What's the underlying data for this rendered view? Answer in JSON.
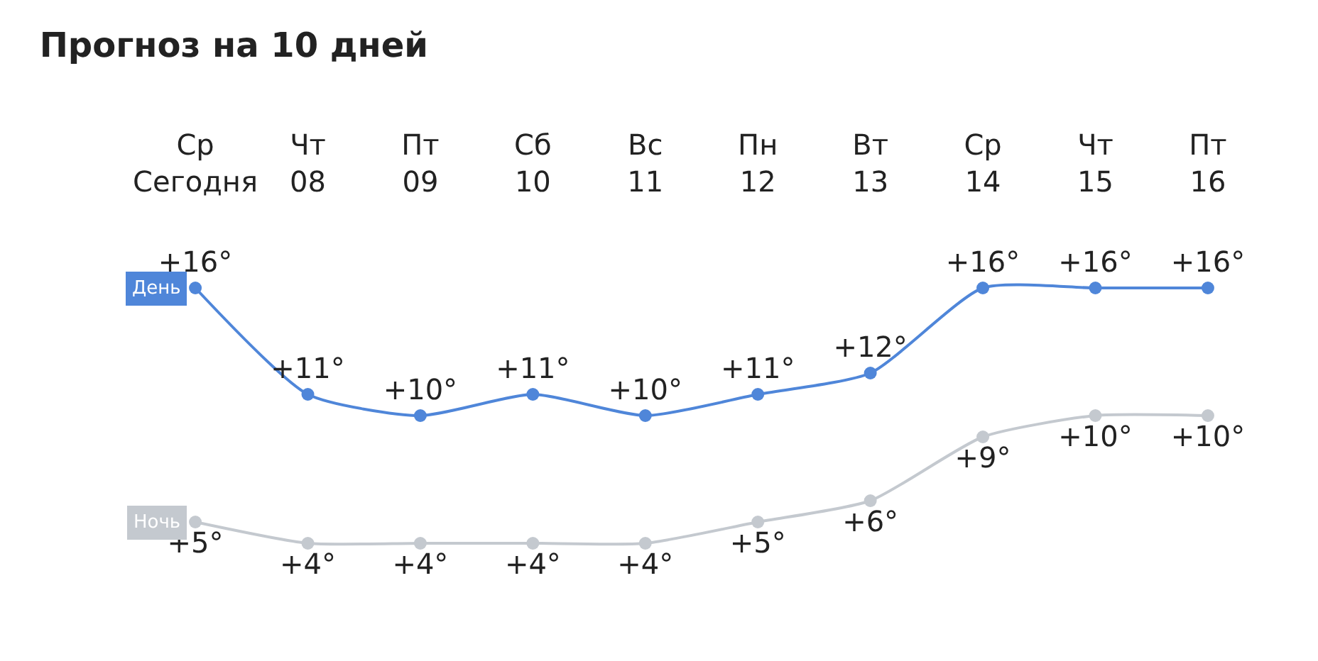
{
  "chart_data": {
    "type": "line",
    "title": "Прогноз на 10 дней",
    "categories": [
      "Ср\nСегодня",
      "Чт\n08",
      "Пт\n09",
      "Сб\n10",
      "Вс\n11",
      "Пн\n12",
      "Вт\n13",
      "Ср\n14",
      "Чт\n15",
      "Пт\n16"
    ],
    "series": [
      {
        "name": "День",
        "color": "#4f86d9",
        "values": [
          16,
          11,
          10,
          11,
          10,
          11,
          12,
          16,
          16,
          16
        ],
        "value_labels": [
          "+16°",
          "+11°",
          "+10°",
          "+11°",
          "+10°",
          "+11°",
          "+12°",
          "+16°",
          "+16°",
          "+16°"
        ]
      },
      {
        "name": "Ночь",
        "color": "#c4c9cf",
        "values": [
          5,
          4,
          4,
          4,
          4,
          5,
          6,
          9,
          10,
          10
        ],
        "value_labels": [
          "+5°",
          "+4°",
          "+4°",
          "+4°",
          "+4°",
          "+5°",
          "+6°",
          "+9°",
          "+10°",
          "+10°"
        ]
      }
    ],
    "marker": "circle",
    "line_style": "solid",
    "legend": false,
    "tick_labels": "x"
  }
}
